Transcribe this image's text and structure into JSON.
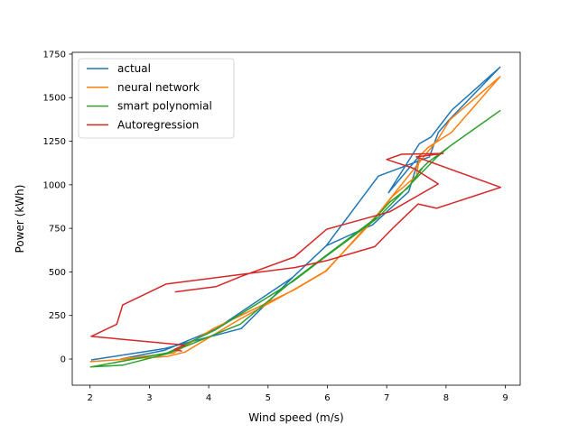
{
  "chart_data": {
    "type": "line",
    "xlabel": "Wind speed (m/s)",
    "ylabel": "Power (kWh)",
    "xlim": [
      1.7,
      9.25
    ],
    "ylim": [
      -150,
      1760
    ],
    "xticks": [
      2,
      3,
      4,
      5,
      6,
      7,
      8,
      9
    ],
    "yticks": [
      0,
      250,
      500,
      750,
      1000,
      1250,
      1500,
      1750
    ],
    "grid": false,
    "legend_position": "top-left",
    "series": [
      {
        "name": "actual",
        "color": "#1f77b4",
        "points": [
          [
            2.02,
            -5
          ],
          [
            3.26,
            60
          ],
          [
            4.55,
            175
          ],
          [
            5.42,
            470
          ],
          [
            5.98,
            650
          ],
          [
            6.76,
            770
          ],
          [
            7.37,
            960
          ],
          [
            7.56,
            1170
          ],
          [
            7.03,
            955
          ],
          [
            7.55,
            1235
          ],
          [
            7.75,
            1275
          ],
          [
            8.1,
            1430
          ],
          [
            8.91,
            1675
          ],
          [
            8.06,
            1375
          ],
          [
            7.87,
            1300
          ],
          [
            7.72,
            1160
          ],
          [
            6.86,
            1050
          ],
          [
            5.98,
            650
          ],
          [
            5.42,
            470
          ],
          [
            4.11,
            170
          ],
          [
            3.25,
            50
          ],
          [
            2.52,
            0
          ]
        ]
      },
      {
        "name": "neural network",
        "color": "#ff7f0e",
        "points": [
          [
            2.0,
            -15
          ],
          [
            3.3,
            15
          ],
          [
            3.6,
            40
          ],
          [
            4.53,
            230
          ],
          [
            5.42,
            395
          ],
          [
            5.97,
            505
          ],
          [
            6.76,
            790
          ],
          [
            7.1,
            935
          ],
          [
            7.5,
            1050
          ],
          [
            7.55,
            1150
          ],
          [
            7.57,
            1170
          ],
          [
            7.7,
            1215
          ],
          [
            8.09,
            1300
          ],
          [
            8.91,
            1620
          ],
          [
            8.07,
            1375
          ],
          [
            7.86,
            1260
          ],
          [
            6.87,
            840
          ],
          [
            5.98,
            505
          ],
          [
            5.43,
            395
          ],
          [
            4.08,
            175
          ],
          [
            3.41,
            35
          ],
          [
            2.51,
            0
          ]
        ]
      },
      {
        "name": "smart polynomial",
        "color": "#2ca02c",
        "points": [
          [
            2.0,
            -45
          ],
          [
            2.55,
            -35
          ],
          [
            3.3,
            30
          ],
          [
            4.53,
            200
          ],
          [
            5.42,
            450
          ],
          [
            6.0,
            600
          ],
          [
            6.78,
            800
          ],
          [
            7.05,
            900
          ],
          [
            7.35,
            980
          ],
          [
            7.6,
            1095
          ],
          [
            7.55,
            1080
          ],
          [
            7.7,
            1130
          ],
          [
            8.1,
            1230
          ],
          [
            8.91,
            1425
          ],
          [
            8.06,
            1220
          ],
          [
            7.85,
            1160
          ],
          [
            6.85,
            810
          ],
          [
            5.98,
            590
          ],
          [
            5.42,
            445
          ],
          [
            4.1,
            165
          ],
          [
            3.3,
            35
          ],
          [
            2.02,
            -45
          ]
        ]
      },
      {
        "name": "Autoregression",
        "color": "#d62728",
        "points": [
          [
            3.43,
            385
          ],
          [
            4.12,
            415
          ],
          [
            4.55,
            475
          ],
          [
            5.44,
            585
          ],
          [
            5.99,
            745
          ],
          [
            7.05,
            845
          ],
          [
            7.87,
            1005
          ],
          [
            7.45,
            1095
          ],
          [
            7.0,
            1145
          ],
          [
            7.25,
            1175
          ],
          [
            7.95,
            1180
          ],
          [
            7.5,
            1160
          ],
          [
            8.92,
            985
          ],
          [
            7.84,
            865
          ],
          [
            7.53,
            890
          ],
          [
            7.1,
            750
          ],
          [
            6.8,
            645
          ],
          [
            5.99,
            565
          ],
          [
            5.45,
            525
          ],
          [
            3.28,
            430
          ],
          [
            2.55,
            310
          ],
          [
            2.45,
            200
          ],
          [
            2.02,
            130
          ],
          [
            3.6,
            80
          ],
          [
            3.42,
            55
          ],
          [
            3.55,
            45
          ]
        ]
      }
    ]
  }
}
